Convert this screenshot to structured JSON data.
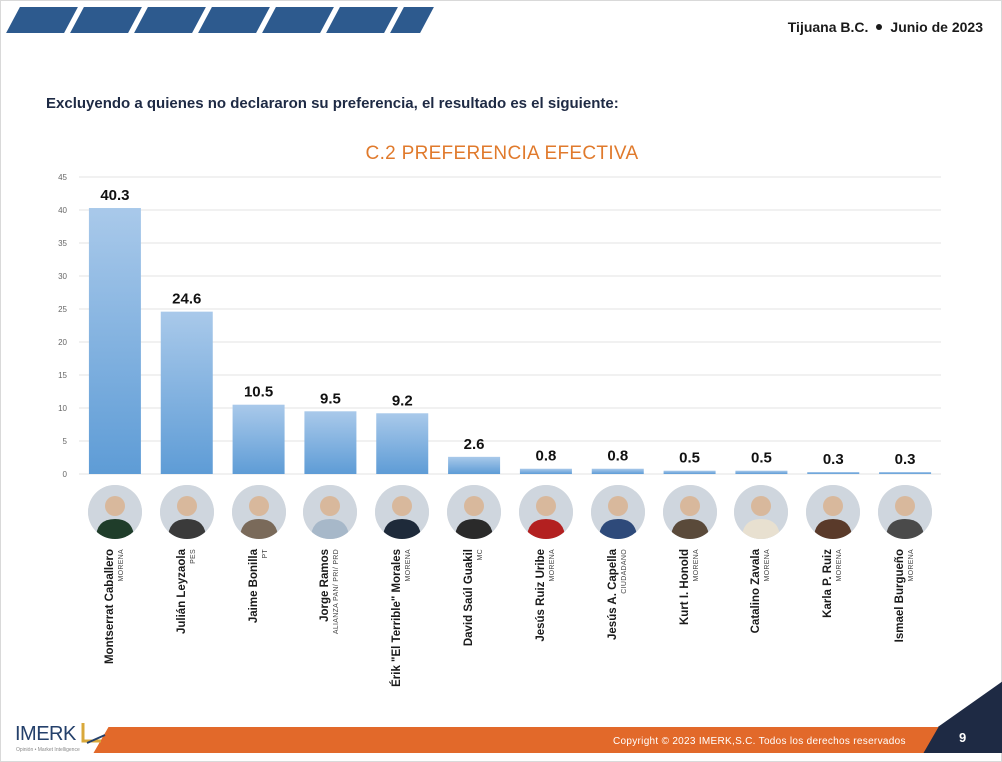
{
  "header": {
    "location": "Tijuana B.C.",
    "date": "Junio de 2023"
  },
  "subtitle": "Excluyendo a quienes no declararon su preferencia, el resultado es el siguiente:",
  "chart_data": {
    "type": "bar",
    "title": "C.2 PREFERENCIA EFECTIVA",
    "categories": [
      "Montserrat Caballero",
      "Julián Leyzaola",
      "Jaime Bonilla",
      "Jorge Ramos",
      "Érik \"El Terrible\" Morales",
      "David Saúl Guakil",
      "Jesús Ruiz Uribe",
      "Jesús A. Capella",
      "Kurt I. Honold",
      "Catalino Zavala",
      "Karla P. Ruiz",
      "Ismael Burgueño"
    ],
    "parties": [
      "MORENA",
      "PES",
      "PT",
      "ALIANZA PAN/ PRI/ PRD",
      "MORENA",
      "MC",
      "MORENA",
      "CIUDADANO",
      "MORENA",
      "MORENA",
      "MORENA",
      "MORENA"
    ],
    "values": [
      40.3,
      24.6,
      10.5,
      9.5,
      9.2,
      2.6,
      0.8,
      0.8,
      0.5,
      0.5,
      0.3,
      0.3
    ],
    "value_labels": [
      "40.3",
      "24.6",
      "10.5",
      "9.5",
      "9.2",
      "2.6",
      "0.8",
      "0.8",
      "0.5",
      "0.5",
      "0.3",
      "0.3"
    ],
    "yticks": [
      0,
      5,
      10,
      15,
      20,
      25,
      30,
      35,
      40,
      45
    ],
    "ylim": [
      0,
      45
    ],
    "xlabel": "",
    "ylabel": "",
    "grid": true,
    "colors": {
      "bar_top": "#a9c9ea",
      "bar_bottom": "#5e9cd6",
      "label": "#111111",
      "grid": "#e3e3e3",
      "title": "#e07a2c"
    }
  },
  "footer": {
    "copyright": "Copyright © 2023 IMERK,S.C. Todos los derechos reservados",
    "page": "9",
    "logo": "IMERK",
    "logo_tagline": "Opinión • Market Intelligence"
  }
}
